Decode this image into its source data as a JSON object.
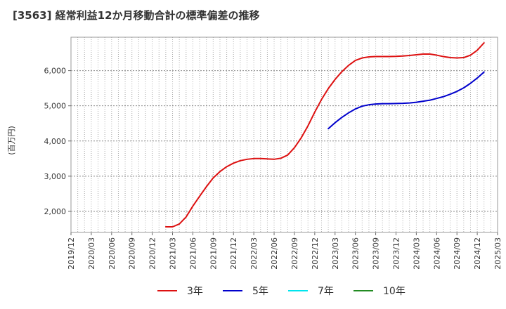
{
  "chart_data": {
    "type": "line",
    "title": "[3563]  経常利益12か月移動合計の標準偏差の推移",
    "xlabel": "",
    "ylabel": "(百万円)",
    "ylim": [
      1400,
      6950
    ],
    "yticks": [
      2000,
      3000,
      4000,
      5000,
      6000
    ],
    "ytick_labels": [
      "2,000",
      "3,000",
      "4,000",
      "5,000",
      "6,000"
    ],
    "xlim": [
      "2019-12",
      "2025-03"
    ],
    "xticks": [
      "2019/12",
      "2020/03",
      "2020/06",
      "2020/09",
      "2020/12",
      "2021/03",
      "2021/06",
      "2021/09",
      "2021/12",
      "2022/03",
      "2022/06",
      "2022/09",
      "2022/12",
      "2023/03",
      "2023/06",
      "2023/09",
      "2023/12",
      "2024/03",
      "2024/06",
      "2024/09",
      "2024/12",
      "2025/03"
    ],
    "grid": true,
    "legend_position": "bottom",
    "series": [
      {
        "name": "3年",
        "color": "#dd1111",
        "start": "2021-02",
        "values": [
          1560,
          1560,
          1640,
          1840,
          2150,
          2430,
          2700,
          2950,
          3130,
          3270,
          3370,
          3440,
          3480,
          3500,
          3500,
          3490,
          3480,
          3510,
          3600,
          3810,
          4090,
          4430,
          4820,
          5180,
          5490,
          5750,
          5970,
          6150,
          6290,
          6360,
          6390,
          6400,
          6400,
          6400,
          6405,
          6415,
          6430,
          6450,
          6470,
          6470,
          6440,
          6400,
          6370,
          6360,
          6370,
          6440,
          6580,
          6790
        ]
      },
      {
        "name": "5年",
        "color": "#0000cc",
        "start": "2023-02",
        "values": [
          4350,
          4520,
          4670,
          4800,
          4910,
          4990,
          5030,
          5050,
          5060,
          5060,
          5065,
          5070,
          5080,
          5100,
          5130,
          5160,
          5210,
          5260,
          5330,
          5410,
          5510,
          5640,
          5790,
          5960
        ]
      },
      {
        "name": "7年",
        "color": "#00e5ee",
        "start": "",
        "values": []
      },
      {
        "name": "10年",
        "color": "#228b22",
        "start": "",
        "values": []
      }
    ]
  }
}
